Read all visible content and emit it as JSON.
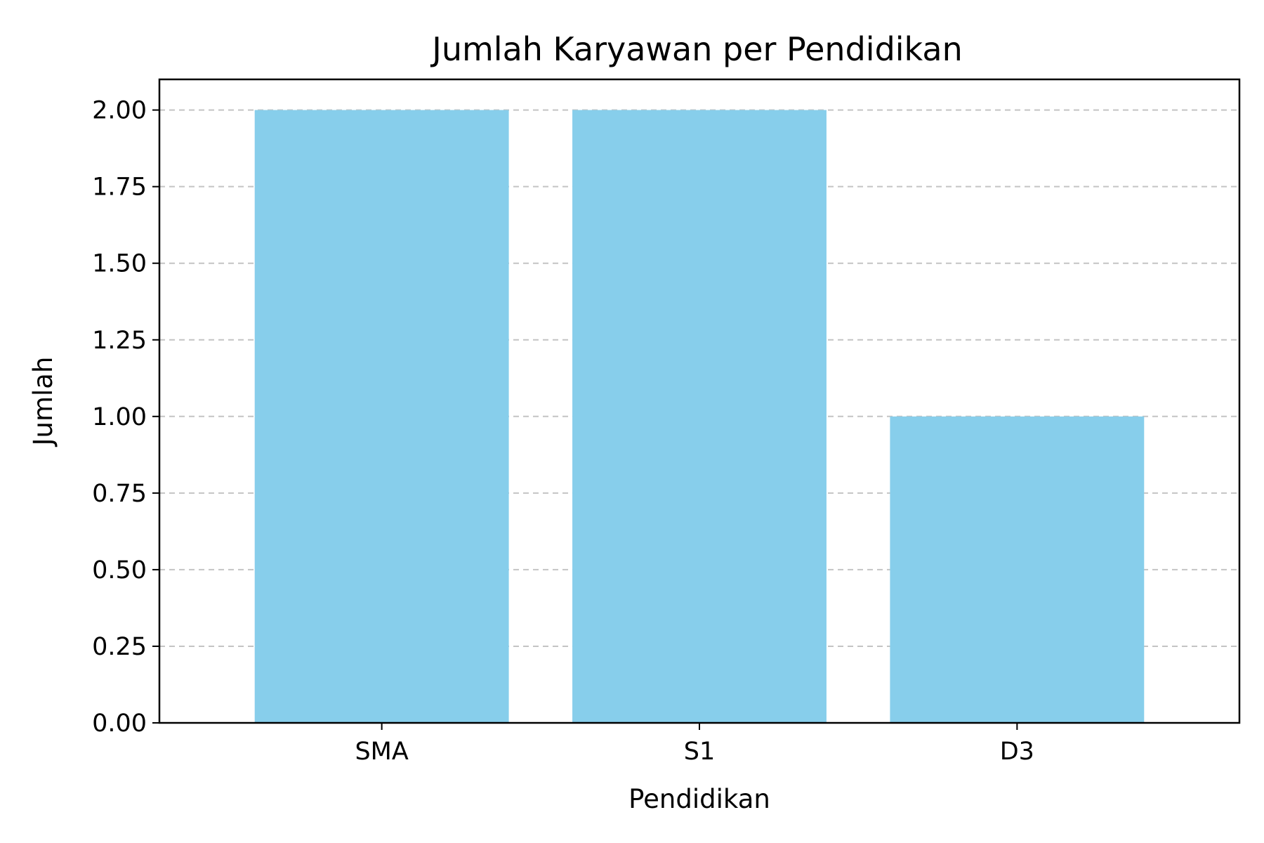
{
  "chart_data": {
    "type": "bar",
    "title": "Jumlah Karyawan per Pendidikan",
    "xlabel": "Pendidikan",
    "ylabel": "Jumlah",
    "categories": [
      "SMA",
      "S1",
      "D3"
    ],
    "values": [
      2,
      2,
      1
    ],
    "ylim": [
      0,
      2.1
    ],
    "yticks": [
      "0.00",
      "0.25",
      "0.50",
      "0.75",
      "1.00",
      "1.25",
      "1.50",
      "1.75",
      "2.00"
    ],
    "grid": "y-dashed",
    "bar_color": "#87CEEB",
    "legend": "none"
  }
}
